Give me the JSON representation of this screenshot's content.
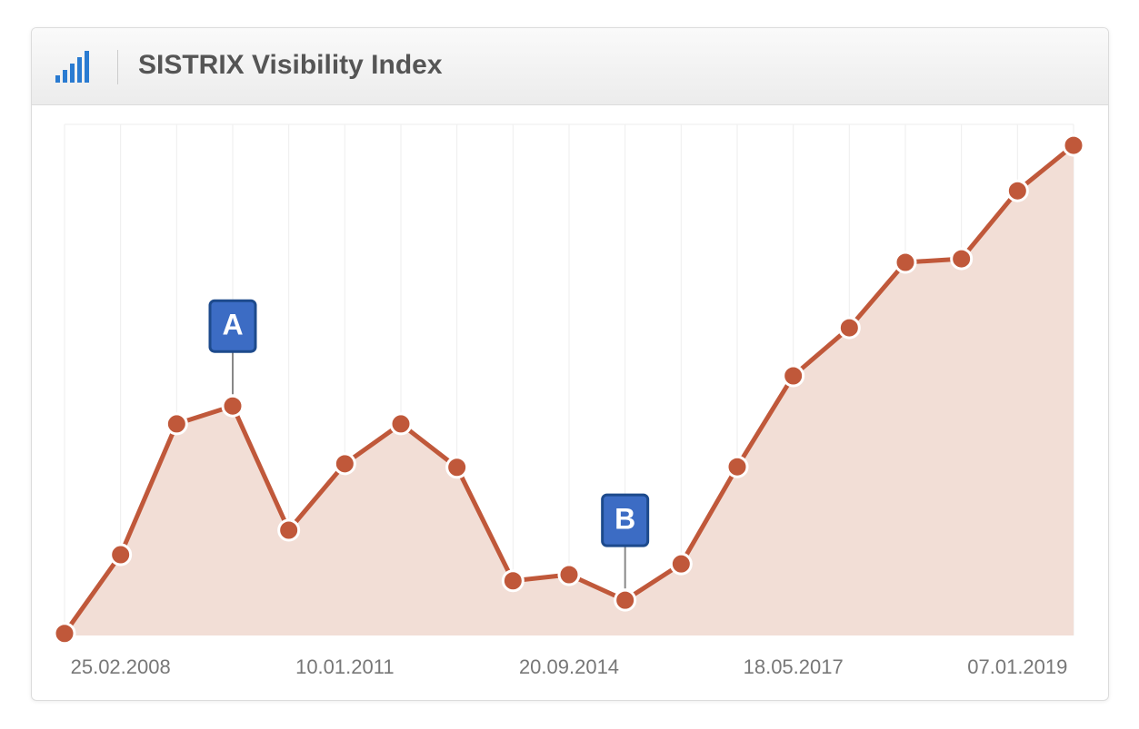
{
  "chart_data": {
    "type": "area",
    "title": "SISTRIX Visibility Index",
    "categories": [
      null,
      "25.02.2008",
      null,
      null,
      null,
      "10.01.2011",
      null,
      null,
      null,
      "20.09.2014",
      null,
      null,
      null,
      "18.05.2017",
      null,
      null,
      null,
      "07.01.2019",
      null
    ],
    "values": [
      0.4,
      15.8,
      41.4,
      44.9,
      20.6,
      33.6,
      41.4,
      32.9,
      10.7,
      11.9,
      6.9,
      14.0,
      33.0,
      50.8,
      60.2,
      73.0,
      73.7,
      87.0,
      95.9
    ],
    "color": "#c0583a",
    "fill_color": "#f2ded6",
    "ylim": [
      0,
      100
    ],
    "grid": true,
    "annotations": [
      {
        "text": "A",
        "at": 3
      },
      {
        "text": "B",
        "at": 10
      }
    ]
  }
}
